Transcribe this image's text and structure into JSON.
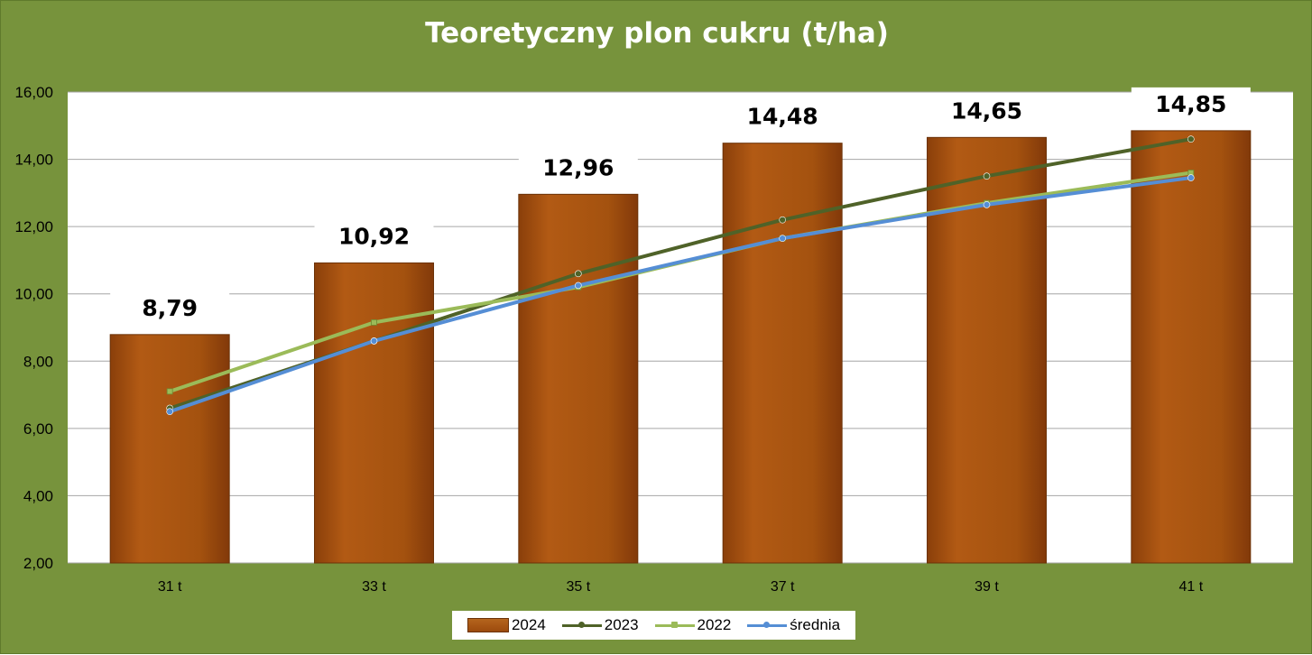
{
  "chart_data": {
    "type": "bar+line",
    "title": "Teoretyczny plon cukru (t/ha)",
    "categories": [
      "31 t",
      "33 t",
      "35 t",
      "37 t",
      "39 t",
      "41 t"
    ],
    "ylim": [
      2,
      16
    ],
    "yticks": [
      "2,00",
      "4,00",
      "6,00",
      "8,00",
      "10,00",
      "12,00",
      "14,00",
      "16,00"
    ],
    "grid": true,
    "legend_position": "bottom",
    "series": [
      {
        "name": "2024",
        "type": "bar",
        "color": "#a0500f",
        "values": [
          8.79,
          10.92,
          12.96,
          14.48,
          14.65,
          14.85
        ],
        "labels": [
          "8,79",
          "10,92",
          "12,96",
          "14,48",
          "14,65",
          "14,85"
        ]
      },
      {
        "name": "2023",
        "type": "line",
        "color": "#4f6228",
        "values": [
          6.6,
          8.6,
          10.6,
          12.2,
          13.5,
          14.6
        ]
      },
      {
        "name": "2022",
        "type": "line",
        "color": "#9bbb59",
        "values": [
          7.1,
          9.15,
          10.2,
          11.65,
          12.7,
          13.6
        ]
      },
      {
        "name": "średnia",
        "type": "line",
        "color": "#558ed5",
        "values": [
          6.5,
          8.6,
          10.25,
          11.65,
          12.65,
          13.45
        ]
      }
    ]
  }
}
